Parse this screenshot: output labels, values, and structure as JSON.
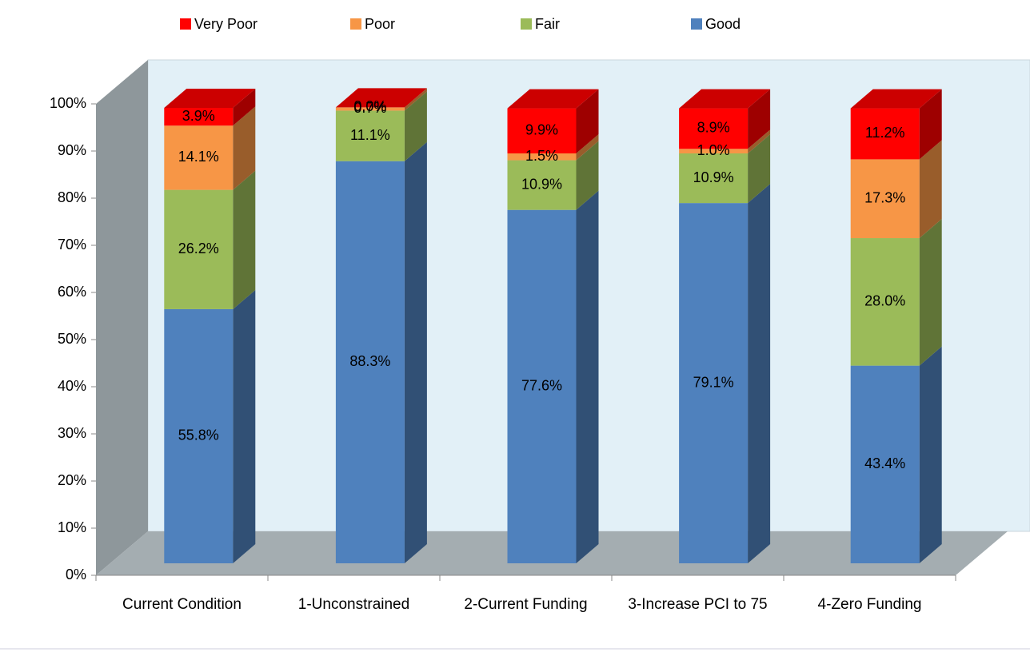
{
  "chart_data": {
    "type": "bar3d_stacked",
    "categories": [
      "Current Condition",
      "1-Unconstrained",
      "2-Current Funding",
      "3-Increase PCI to 75",
      "4-Zero Funding"
    ],
    "series": [
      {
        "name": "Good",
        "color": "#4f81bd",
        "values": [
          55.8,
          88.3,
          77.6,
          79.1,
          43.4
        ],
        "value_labels": [
          "55.8%",
          "88.3%",
          "77.6%",
          "79.1%",
          "43.4%"
        ]
      },
      {
        "name": "Fair",
        "color": "#9bbb59",
        "values": [
          26.2,
          11.1,
          10.9,
          10.9,
          28.0
        ],
        "value_labels": [
          "26.2%",
          "11.1%",
          "10.9%",
          "10.9%",
          "28.0%"
        ]
      },
      {
        "name": "Poor",
        "color": "#f79646",
        "values": [
          14.1,
          0.7,
          1.5,
          1.0,
          17.3
        ],
        "value_labels": [
          "14.1%",
          "0.7%",
          "1.5%",
          "1.0%",
          "17.3%"
        ]
      },
      {
        "name": "Very Poor",
        "color": "#ff0000",
        "values": [
          3.9,
          0.0,
          9.9,
          8.9,
          11.2
        ],
        "value_labels": [
          "3.9%",
          "0.0%",
          "9.9%",
          "8.9%",
          "11.2%"
        ]
      }
    ],
    "legend_order": [
      "Very Poor",
      "Poor",
      "Fair",
      "Good"
    ],
    "legend": "top",
    "ylim": [
      0,
      100
    ],
    "yticks": [
      {
        "value": 0,
        "label": "0%"
      },
      {
        "value": 10,
        "label": "10%"
      },
      {
        "value": 20,
        "label": "20%"
      },
      {
        "value": 30,
        "label": "30%"
      },
      {
        "value": 40,
        "label": "40%"
      },
      {
        "value": 50,
        "label": "50%"
      },
      {
        "value": 60,
        "label": "60%"
      },
      {
        "value": 70,
        "label": "70%"
      },
      {
        "value": 80,
        "label": "80%"
      },
      {
        "value": 90,
        "label": "90%"
      },
      {
        "value": 100,
        "label": "100%"
      }
    ]
  }
}
